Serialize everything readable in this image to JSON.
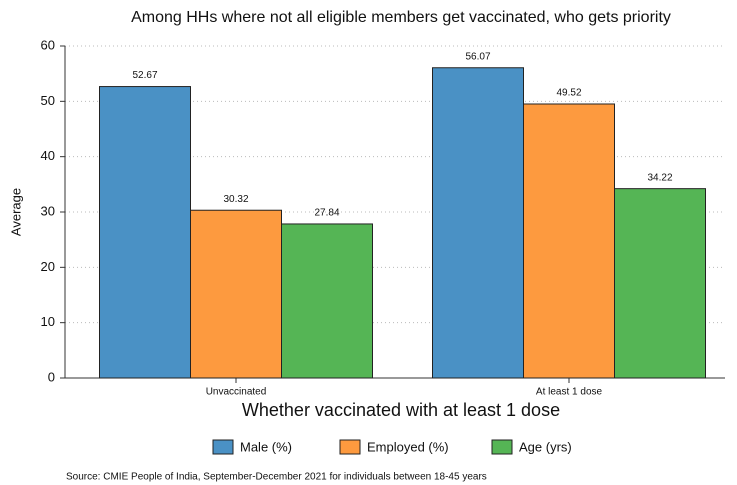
{
  "chart_data": {
    "type": "bar",
    "title": "Among HHs where not all eligible members get vaccinated, who gets priority",
    "x_label": "Whether vaccinated with at least 1 dose",
    "y_label": "Average",
    "source": "Source: CMIE People of India, September-December 2021 for individuals between 18-45 years",
    "categories": [
      "Unvaccinated",
      "At least 1 dose"
    ],
    "series": [
      {
        "name": "Male (%)",
        "color": "#4a91c5",
        "values": [
          52.67,
          56.07
        ]
      },
      {
        "name": "Employed (%)",
        "color": "#fd9a3f",
        "values": [
          30.32,
          49.52
        ]
      },
      {
        "name": "Age (yrs)",
        "color": "#55b555",
        "values": [
          27.84,
          34.22
        ]
      }
    ],
    "ylim": [
      0,
      60
    ],
    "yticks": [
      0,
      10,
      20,
      30,
      40,
      50,
      60
    ],
    "grid": true,
    "legend": "bottom"
  }
}
